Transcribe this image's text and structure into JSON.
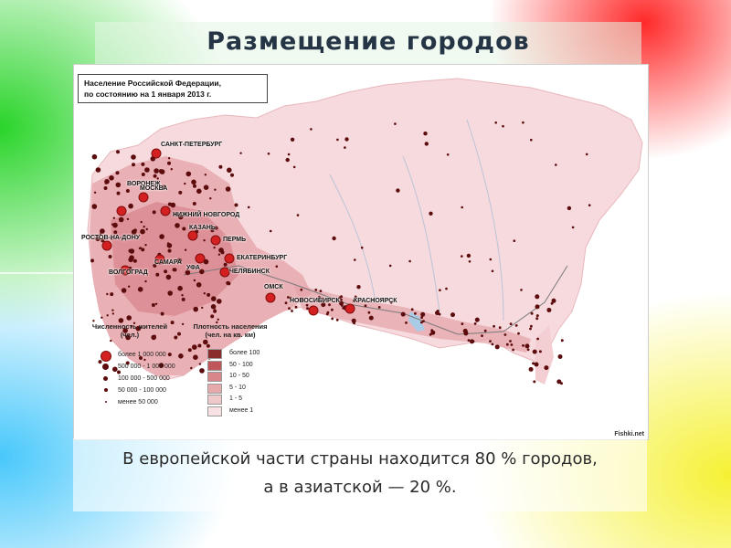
{
  "slide": {
    "title": "Размещение городов"
  },
  "map": {
    "header_line1": "Население Российской Федерации,",
    "header_line2": "по состоянию на 1 января 2013 г.",
    "credit": "Fishki.net",
    "cities": [
      "САНКТ-ПЕТЕРБУРГ",
      "ВОРОНЕЖ",
      "МОСКВА",
      "НИЖНИЙ НОВГОРОД",
      "КАЗАНЬ",
      "ПЕРМЬ",
      "РОСТОВ-НА-ДОНУ",
      "САМАРА",
      "ЕКАТЕРИНБУРГ",
      "УФА",
      "ВОЛГОГРАД",
      "ЧЕЛЯБИНСК",
      "ОМСК",
      "НОВОСИБИРСК",
      "КРАСНОЯРСК"
    ],
    "legend_population": {
      "title_line1": "Численность жителей",
      "title_line2": "(чел.)",
      "items": [
        "более 1 000 000",
        "500 000 - 1 000 000",
        "100 000 - 500 000",
        "50 000 - 100 000",
        "менее 50 000"
      ]
    },
    "legend_density": {
      "title_line1": "Плотность населения",
      "title_line2": "(чел. на кв. км)",
      "items": [
        "более 100",
        "50 - 100",
        "10 - 50",
        "5 - 10",
        "1 - 5",
        "менее 1"
      ],
      "colors": [
        "#8b2c2c",
        "#c0555a",
        "#d9868a",
        "#e6a9ac",
        "#efc8ca",
        "#f8e1e3"
      ]
    },
    "colors": {
      "territory": "#f6dadd",
      "dense": "#d98890",
      "city_large": "#d42020",
      "city_dot": "#5c0c0c"
    }
  },
  "caption": {
    "line1": "В европейской части страны находится 80 % городов,",
    "line2": "а в азиатской — 20 %."
  }
}
